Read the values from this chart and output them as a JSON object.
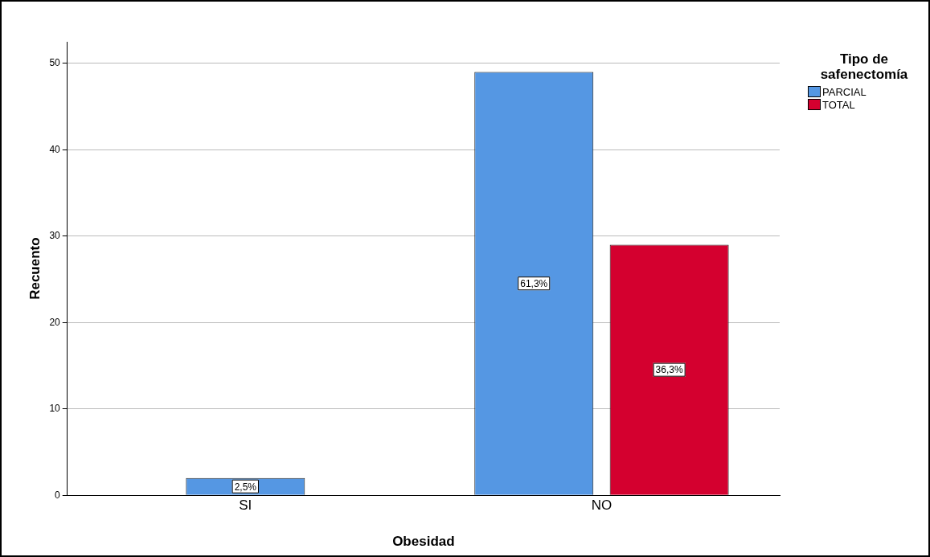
{
  "chart_data": {
    "type": "bar",
    "xlabel": "Obesidad",
    "ylabel": "Recuento",
    "legend_title": "Tipo de safenectomía",
    "categories": [
      "SI",
      "NO"
    ],
    "series": [
      {
        "name": "PARCIAL",
        "color": "#5597e3",
        "values": [
          2,
          49
        ]
      },
      {
        "name": "TOTAL",
        "color": "#d4002f",
        "values": [
          null,
          29
        ]
      }
    ],
    "annotations": [
      "2,5%",
      "61,3%",
      "36,3%"
    ],
    "ylim": [
      0,
      52.5
    ],
    "yticks": [
      0,
      10,
      20,
      30,
      40,
      50
    ],
    "grid": "y",
    "legend": "top right"
  }
}
